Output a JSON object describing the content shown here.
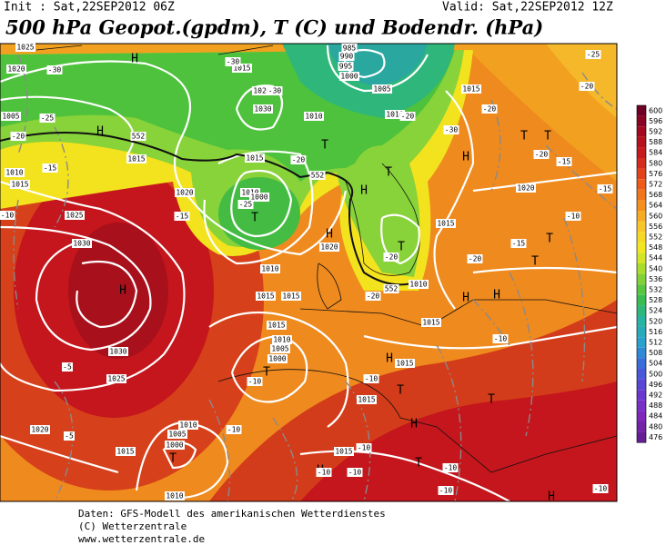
{
  "header": {
    "init": "Init : Sat,22SEP2012 06Z",
    "valid": "Valid: Sat,22SEP2012 12Z",
    "title": "500 hPa Geopot.(gpdm), T (C) und Bodendr. (hPa)"
  },
  "colorbar": {
    "labels": [
      "600",
      "596",
      "592",
      "588",
      "584",
      "580",
      "576",
      "572",
      "568",
      "564",
      "560",
      "556",
      "552",
      "548",
      "544",
      "540",
      "536",
      "532",
      "528",
      "524",
      "520",
      "516",
      "512",
      "508",
      "504",
      "500",
      "496",
      "492",
      "488",
      "484",
      "480",
      "476"
    ]
  },
  "map_labels": [
    "H",
    "1025",
    "1020",
    "-30",
    "-25",
    "1005",
    "-20",
    "H",
    "1015",
    "1010",
    "-15",
    "1015",
    "-10",
    "1025",
    "1030",
    "H",
    "1030",
    "-5",
    "1025",
    "1020",
    "-5",
    "1015",
    "1010",
    "1005",
    "1000",
    "T",
    "1010",
    "-10",
    "1015",
    "1010",
    "1005",
    "1000",
    "T",
    "-10",
    "1010",
    "1015",
    "1020",
    "-15",
    "1010",
    "1000",
    "-25",
    "T",
    "1015",
    "-20",
    "T",
    "1010",
    "1020",
    "-30",
    "1030",
    "1015",
    "-30",
    "985",
    "990",
    "995",
    "1000",
    "1005",
    "1010",
    "-20",
    "-30",
    "T",
    "H",
    "H",
    "1015",
    "-25",
    "-20",
    "-20",
    "T",
    "T",
    "-20",
    "-15",
    "1020",
    "-15",
    "-10",
    "T",
    "-15",
    "1015",
    "-20",
    "T",
    "T",
    "-20",
    "1020",
    "H",
    "1015",
    "552",
    "552",
    "1010",
    "H",
    "H",
    "-20",
    "552",
    "1015",
    "-10",
    "H",
    "1015",
    "-10",
    "1015",
    "T",
    "T",
    "H",
    "1015",
    "-10",
    "H",
    "-10",
    "-10",
    "T",
    "-10",
    "-10",
    "H",
    "-10"
  ],
  "footer": {
    "source": "Daten: GFS-Modell des amerikanischen Wetterdienstes",
    "copyright": "(C) Wetterzentrale",
    "url": "www.wetterzentrale.de"
  }
}
